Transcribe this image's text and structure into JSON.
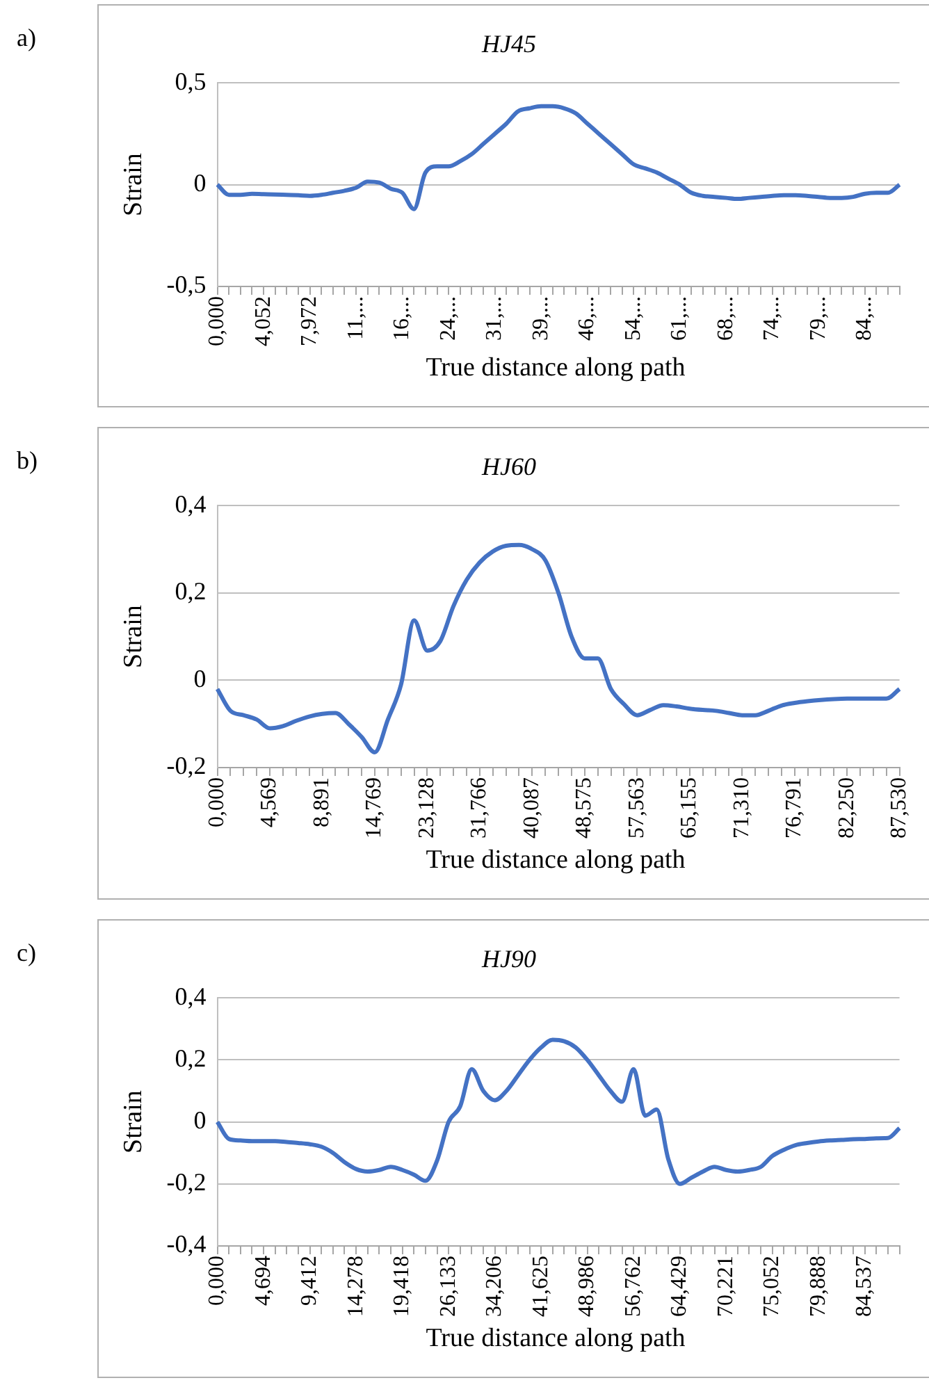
{
  "chart_data": [
    {
      "type": "line",
      "title": "HJ45",
      "xlabel": "True distance along path",
      "ylabel": "Strain",
      "annotations": [
        "a)"
      ],
      "color": "#4472c4",
      "grid": "y",
      "marker": "none",
      "line_style": "solid",
      "categories": [
        "0,000",
        null,
        null,
        null,
        "4,052",
        null,
        null,
        null,
        "7,972",
        null,
        null,
        null,
        "11,...",
        null,
        null,
        null,
        "16,...",
        null,
        null,
        null,
        "24,...",
        null,
        null,
        null,
        "31,...",
        null,
        null,
        null,
        "39,...",
        null,
        null,
        null,
        "46,...",
        null,
        null,
        null,
        "54,...",
        null,
        null,
        null,
        "61,...",
        null,
        null,
        null,
        "68,...",
        null,
        null,
        null,
        "74,...",
        null,
        null,
        null,
        "79,...",
        null,
        null,
        null,
        "84,...",
        null,
        null,
        null
      ],
      "values": [
        0,
        -0.05,
        -0.05,
        -0.045,
        -0.047,
        -0.048,
        -0.05,
        -0.052,
        -0.055,
        -0.05,
        -0.04,
        -0.03,
        -0.015,
        0.015,
        0.01,
        -0.02,
        -0.04,
        -0.12,
        0.06,
        0.09,
        0.09,
        0.115,
        0.15,
        0.2,
        0.25,
        0.3,
        0.36,
        0.375,
        0.385,
        0.385,
        0.375,
        0.35,
        0.3,
        0.25,
        0.2,
        0.15,
        0.1,
        0.08,
        0.06,
        0.03,
        0,
        -0.04,
        -0.055,
        -0.06,
        -0.065,
        -0.07,
        -0.065,
        -0.06,
        -0.055,
        -0.052,
        -0.052,
        -0.055,
        -0.06,
        -0.065,
        -0.065,
        -0.06,
        -0.045,
        -0.04,
        -0.04,
        0
      ],
      "ylim": [
        -0.5,
        0.5
      ],
      "yticks": [
        {
          "value": -0.5,
          "label": "-0,5"
        },
        {
          "value": 0,
          "label": "0"
        },
        {
          "value": 0.5,
          "label": "0,5"
        }
      ]
    },
    {
      "type": "line",
      "title": "HJ60",
      "xlabel": "True distance along path",
      "ylabel": "Strain",
      "annotations": [
        "b)"
      ],
      "color": "#4472c4",
      "grid": "y",
      "marker": "none",
      "line_style": "solid",
      "categories": [
        "0,000",
        null,
        null,
        null,
        "4,569",
        null,
        null,
        null,
        "8,891",
        null,
        null,
        null,
        "14,769",
        null,
        null,
        null,
        "23,128",
        null,
        null,
        null,
        "31,766",
        null,
        null,
        null,
        "40,087",
        null,
        null,
        null,
        "48,575",
        null,
        null,
        null,
        "57,563",
        null,
        null,
        null,
        "65,155",
        null,
        null,
        null,
        "71,310",
        null,
        null,
        null,
        "76,791",
        null,
        null,
        null,
        "82,250",
        null,
        null,
        null,
        "87,530"
      ],
      "values": [
        -0.02,
        -0.07,
        -0.08,
        -0.09,
        -0.11,
        -0.105,
        -0.093,
        -0.083,
        -0.077,
        -0.075,
        -0.1,
        -0.13,
        -0.165,
        -0.09,
        -0.01,
        0.137,
        0.068,
        0.09,
        0.17,
        0.23,
        0.27,
        0.295,
        0.308,
        0.31,
        0.3,
        0.275,
        0.2,
        0.1,
        0.05,
        0.05,
        -0.02,
        -0.055,
        -0.08,
        -0.068,
        -0.057,
        -0.06,
        -0.065,
        -0.068,
        -0.07,
        -0.075,
        -0.08,
        -0.08,
        -0.07,
        -0.058,
        -0.052,
        -0.048,
        -0.045,
        -0.043,
        -0.042,
        -0.042,
        -0.042,
        -0.042,
        -0.02
      ],
      "ylim": [
        -0.2,
        0.4
      ],
      "yticks": [
        {
          "value": -0.2,
          "label": "-0,2"
        },
        {
          "value": 0,
          "label": "0"
        },
        {
          "value": 0.2,
          "label": "0,2"
        },
        {
          "value": 0.4,
          "label": "0,4"
        }
      ]
    },
    {
      "type": "line",
      "title": "HJ90",
      "xlabel": "True distance along path",
      "ylabel": "Strain",
      "annotations": [
        "c)"
      ],
      "color": "#4472c4",
      "grid": "y",
      "marker": "none",
      "line_style": "solid",
      "categories": [
        "0,000",
        null,
        null,
        null,
        "4,694",
        null,
        null,
        null,
        "9,412",
        null,
        null,
        null,
        "14,278",
        null,
        null,
        null,
        "19,418",
        null,
        null,
        null,
        "26,133",
        null,
        null,
        null,
        "34,206",
        null,
        null,
        null,
        "41,625",
        null,
        null,
        null,
        "48,986",
        null,
        null,
        null,
        "56,762",
        null,
        null,
        null,
        "64,429",
        null,
        null,
        null,
        "70,221",
        null,
        null,
        null,
        "75,052",
        null,
        null,
        null,
        "79,888",
        null,
        null,
        null,
        "84,537",
        null,
        null,
        null
      ],
      "values": [
        0,
        -0.055,
        -0.06,
        -0.062,
        -0.062,
        -0.062,
        -0.065,
        -0.068,
        -0.072,
        -0.08,
        -0.1,
        -0.13,
        -0.152,
        -0.16,
        -0.155,
        -0.145,
        -0.155,
        -0.17,
        -0.19,
        -0.125,
        0,
        0.05,
        0.17,
        0.1,
        0.07,
        0.1,
        0.15,
        0.2,
        0.24,
        0.265,
        0.26,
        0.24,
        0.2,
        0.15,
        0.1,
        0.065,
        0.17,
        0.02,
        0.04,
        -0.12,
        -0.2,
        -0.18,
        -0.16,
        -0.145,
        -0.155,
        -0.16,
        -0.155,
        -0.145,
        -0.11,
        -0.09,
        -0.075,
        -0.068,
        -0.063,
        -0.06,
        -0.058,
        -0.056,
        -0.055,
        -0.053,
        -0.052,
        -0.02
      ],
      "ylim": [
        -0.4,
        0.4
      ],
      "yticks": [
        {
          "value": -0.4,
          "label": "-0,4"
        },
        {
          "value": -0.2,
          "label": "-0,2"
        },
        {
          "value": 0,
          "label": "0"
        },
        {
          "value": 0.2,
          "label": "0,2"
        },
        {
          "value": 0.4,
          "label": "0,4"
        }
      ]
    }
  ]
}
